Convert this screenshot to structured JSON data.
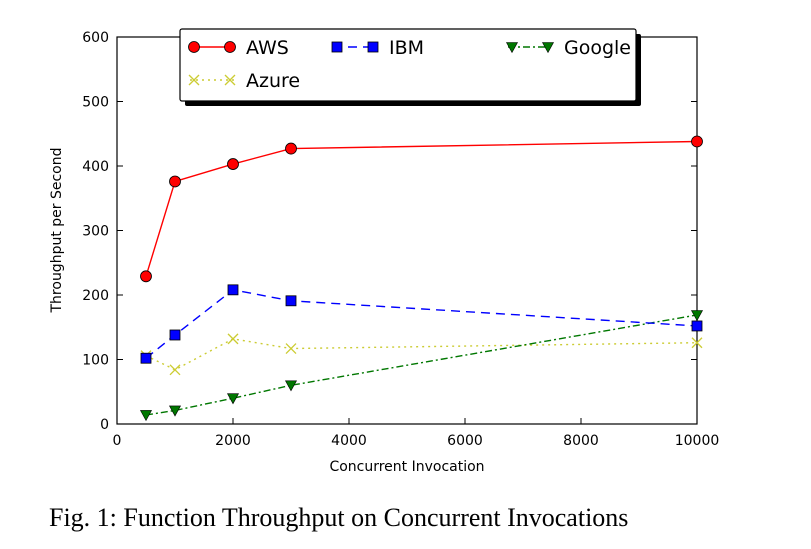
{
  "caption": "Fig. 1: Function Throughput on Concurrent Invocations",
  "chart_data": {
    "type": "line",
    "title": "",
    "xlabel": "Concurrent Invocation",
    "ylabel": "Throughput per Second",
    "xlim": [
      0,
      10000
    ],
    "ylim": [
      0,
      600
    ],
    "xticks": [
      0,
      2000,
      4000,
      6000,
      8000,
      10000
    ],
    "yticks": [
      0,
      100,
      200,
      300,
      400,
      500,
      600
    ],
    "grid": false,
    "legend_position": "top-center",
    "series": [
      {
        "name": "AWS",
        "color": "#ff0000",
        "marker": "circle",
        "dash": "",
        "x": [
          500,
          1000,
          2000,
          3000,
          10000
        ],
        "y": [
          229,
          376,
          403,
          427,
          438
        ]
      },
      {
        "name": "IBM",
        "color": "#0000ff",
        "marker": "square",
        "dash": "9,6",
        "x": [
          500,
          1000,
          2000,
          3000,
          10000
        ],
        "y": [
          102,
          138,
          208,
          191,
          152
        ]
      },
      {
        "name": "Google",
        "color": "#007700",
        "marker": "triangle-down",
        "dash": "7,3,2,3",
        "x": [
          500,
          1000,
          2000,
          3000,
          10000
        ],
        "y": [
          14,
          21,
          40,
          60,
          169
        ]
      },
      {
        "name": "Azure",
        "color": "#cccc33",
        "marker": "x",
        "dash": "2,4",
        "x": [
          500,
          1000,
          2000,
          3000,
          10000
        ],
        "y": [
          106,
          84,
          132,
          117,
          126
        ]
      }
    ]
  }
}
